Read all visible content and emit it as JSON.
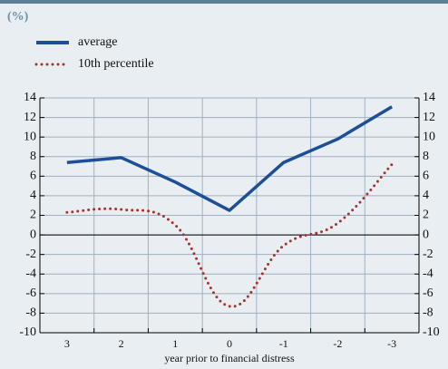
{
  "chart_data": {
    "type": "line",
    "unit_label": "(%)",
    "x_label": "year prior to financial distress",
    "categories": [
      "3",
      "2",
      "1",
      "0",
      "-1",
      "-2",
      "-3"
    ],
    "series": [
      {
        "name": "average",
        "color": "#1d4f98",
        "style": "solid",
        "values": [
          7.4,
          7.9,
          5.4,
          2.5,
          7.4,
          9.8,
          13.1
        ]
      },
      {
        "name": "10th percentile",
        "color": "#a8322c",
        "style": "dotted",
        "values": [
          2.3,
          2.6,
          1.0,
          -7.3,
          -1.1,
          1.2,
          7.2
        ]
      }
    ],
    "ylim": [
      -10,
      14
    ],
    "yticks": [
      -10,
      -8,
      -6,
      -4,
      -2,
      0,
      2,
      4,
      6,
      8,
      10,
      12,
      14
    ],
    "grid": true,
    "right_axis_labels": true
  }
}
